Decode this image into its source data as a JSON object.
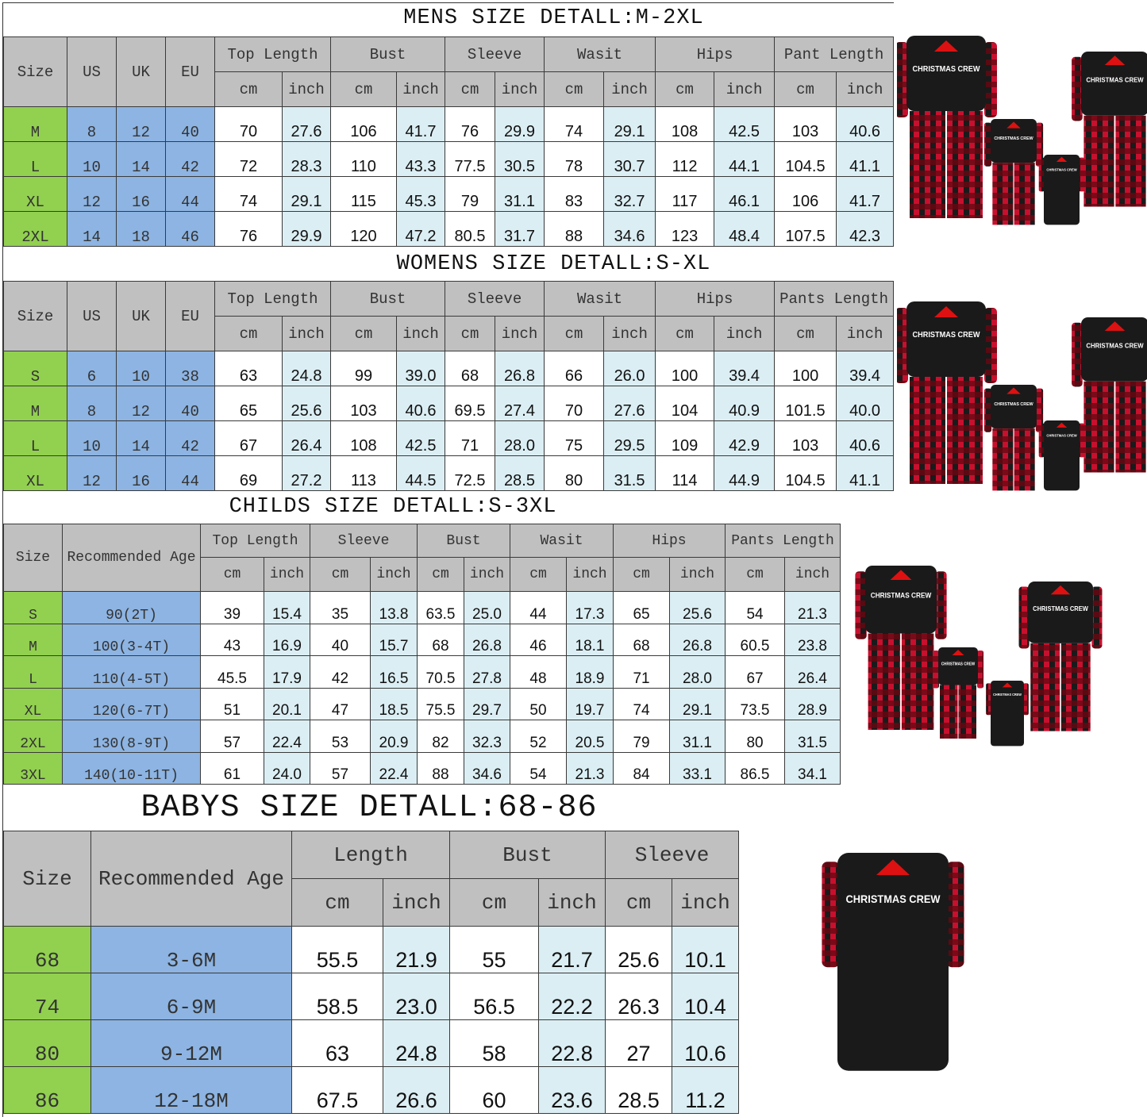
{
  "colors": {
    "header": "#c0c0c0",
    "size_col": "#92d050",
    "region_col": "#8db4e2",
    "inch_col": "#dbeef3",
    "top": "#1a1a1a",
    "plaid_red": "#c8102e",
    "plaid_dark": "#1a1a1a"
  },
  "mens": {
    "title": "MENS SIZE DETALL:M-2XL",
    "fixed_headers": [
      "Size",
      "US",
      "UK",
      "EU"
    ],
    "groups": [
      "Top Length",
      "Bust",
      "Sleeve",
      "Wasit",
      "Hips",
      "Pant Length"
    ],
    "units": [
      "cm",
      "inch"
    ],
    "rows": [
      [
        "M",
        "8",
        "12",
        "40",
        "70",
        "27.6",
        "106",
        "41.7",
        "76",
        "29.9",
        "74",
        "29.1",
        "108",
        "42.5",
        "103",
        "40.6"
      ],
      [
        "L",
        "10",
        "14",
        "42",
        "72",
        "28.3",
        "110",
        "43.3",
        "77.5",
        "30.5",
        "78",
        "30.7",
        "112",
        "44.1",
        "104.5",
        "41.1"
      ],
      [
        "XL",
        "12",
        "16",
        "44",
        "74",
        "29.1",
        "115",
        "45.3",
        "79",
        "31.1",
        "83",
        "32.7",
        "117",
        "46.1",
        "106",
        "41.7"
      ],
      [
        "2XL",
        "14",
        "18",
        "46",
        "76",
        "29.9",
        "120",
        "47.2",
        "80.5",
        "31.7",
        "88",
        "34.6",
        "123",
        "48.4",
        "107.5",
        "42.3"
      ]
    ]
  },
  "womens": {
    "title": "WOMENS SIZE DETALL:S-XL",
    "fixed_headers": [
      "Size",
      "US",
      "UK",
      "EU"
    ],
    "groups": [
      "Top Length",
      "Bust",
      "Sleeve",
      "Wasit",
      "Hips",
      "Pants Length"
    ],
    "units": [
      "cm",
      "inch"
    ],
    "rows": [
      [
        "S",
        "6",
        "10",
        "38",
        "63",
        "24.8",
        "99",
        "39.0",
        "68",
        "26.8",
        "66",
        "26.0",
        "100",
        "39.4",
        "100",
        "39.4"
      ],
      [
        "M",
        "8",
        "12",
        "40",
        "65",
        "25.6",
        "103",
        "40.6",
        "69.5",
        "27.4",
        "70",
        "27.6",
        "104",
        "40.9",
        "101.5",
        "40.0"
      ],
      [
        "L",
        "10",
        "14",
        "42",
        "67",
        "26.4",
        "108",
        "42.5",
        "71",
        "28.0",
        "75",
        "29.5",
        "109",
        "42.9",
        "103",
        "40.6"
      ],
      [
        "XL",
        "12",
        "16",
        "44",
        "69",
        "27.2",
        "113",
        "44.5",
        "72.5",
        "28.5",
        "80",
        "31.5",
        "114",
        "44.9",
        "104.5",
        "41.1"
      ]
    ]
  },
  "childs": {
    "title": "CHILDS SIZE DETALL:S-3XL",
    "fixed_headers": [
      "Size",
      "Recommended Age"
    ],
    "groups": [
      "Top Length",
      "Sleeve",
      "Bust",
      "Wasit",
      "Hips",
      "Pants Length"
    ],
    "units": [
      "cm",
      "inch"
    ],
    "rows": [
      [
        "S",
        "90(2T)",
        "39",
        "15.4",
        "35",
        "13.8",
        "63.5",
        "25.0",
        "44",
        "17.3",
        "65",
        "25.6",
        "54",
        "21.3"
      ],
      [
        "M",
        "100(3-4T)",
        "43",
        "16.9",
        "40",
        "15.7",
        "68",
        "26.8",
        "46",
        "18.1",
        "68",
        "26.8",
        "60.5",
        "23.8"
      ],
      [
        "L",
        "110(4-5T)",
        "45.5",
        "17.9",
        "42",
        "16.5",
        "70.5",
        "27.8",
        "48",
        "18.9",
        "71",
        "28.0",
        "67",
        "26.4"
      ],
      [
        "XL",
        "120(6-7T)",
        "51",
        "20.1",
        "47",
        "18.5",
        "75.5",
        "29.7",
        "50",
        "19.7",
        "74",
        "29.1",
        "73.5",
        "28.9"
      ],
      [
        "2XL",
        "130(8-9T)",
        "57",
        "22.4",
        "53",
        "20.9",
        "82",
        "32.3",
        "52",
        "20.5",
        "79",
        "31.1",
        "80",
        "31.5"
      ],
      [
        "3XL",
        "140(10-11T)",
        "61",
        "24.0",
        "57",
        "22.4",
        "88",
        "34.6",
        "54",
        "21.3",
        "84",
        "33.1",
        "86.5",
        "34.1"
      ]
    ]
  },
  "babys": {
    "title": "BABYS SIZE DETALL:68-86",
    "fixed_headers": [
      "Size",
      "Recommended Age"
    ],
    "groups": [
      "Length",
      "Bust",
      "Sleeve"
    ],
    "units": [
      "cm",
      "inch"
    ],
    "rows": [
      [
        "68",
        "3-6M",
        "55.5",
        "21.9",
        "55",
        "21.7",
        "25.6",
        "10.1"
      ],
      [
        "74",
        "6-9M",
        "58.5",
        "23.0",
        "56.5",
        "22.2",
        "26.3",
        "10.4"
      ],
      [
        "80",
        "9-12M",
        "63",
        "24.8",
        "58",
        "22.8",
        "27",
        "10.6"
      ],
      [
        "86",
        "12-18M",
        "67.5",
        "26.6",
        "60",
        "23.6",
        "28.5",
        "11.2"
      ]
    ]
  },
  "product_graphic": {
    "shirt_print": "CHRISTMAS CREW"
  }
}
